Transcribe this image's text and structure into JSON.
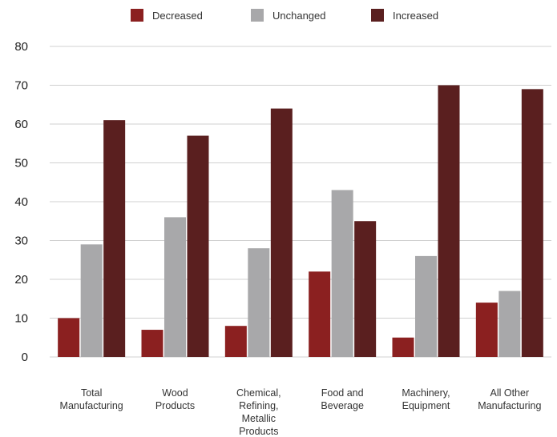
{
  "chart_data": {
    "type": "bar",
    "categories": [
      [
        "Total",
        "Manufacturing"
      ],
      [
        "Wood",
        "Products"
      ],
      [
        "Chemical,",
        "Refining,",
        "Metallic",
        "Products"
      ],
      [
        "Food and",
        "Beverage"
      ],
      [
        "Machinery,",
        "Equipment"
      ],
      [
        "All Other",
        "Manufacturing"
      ]
    ],
    "series": [
      {
        "name": "Decreased",
        "color": "#8b2020",
        "values": [
          10,
          7,
          8,
          22,
          5,
          14
        ]
      },
      {
        "name": "Unchanged",
        "color": "#a8a8aa",
        "values": [
          29,
          36,
          28,
          43,
          26,
          17
        ]
      },
      {
        "name": "Increased",
        "color": "#5a1f1f",
        "values": [
          61,
          57,
          64,
          35,
          70,
          69
        ]
      }
    ],
    "ylim": [
      0,
      80
    ],
    "yticks": [
      0,
      10,
      20,
      30,
      40,
      50,
      60,
      70,
      80
    ],
    "grid": true,
    "legend": "top-center"
  }
}
